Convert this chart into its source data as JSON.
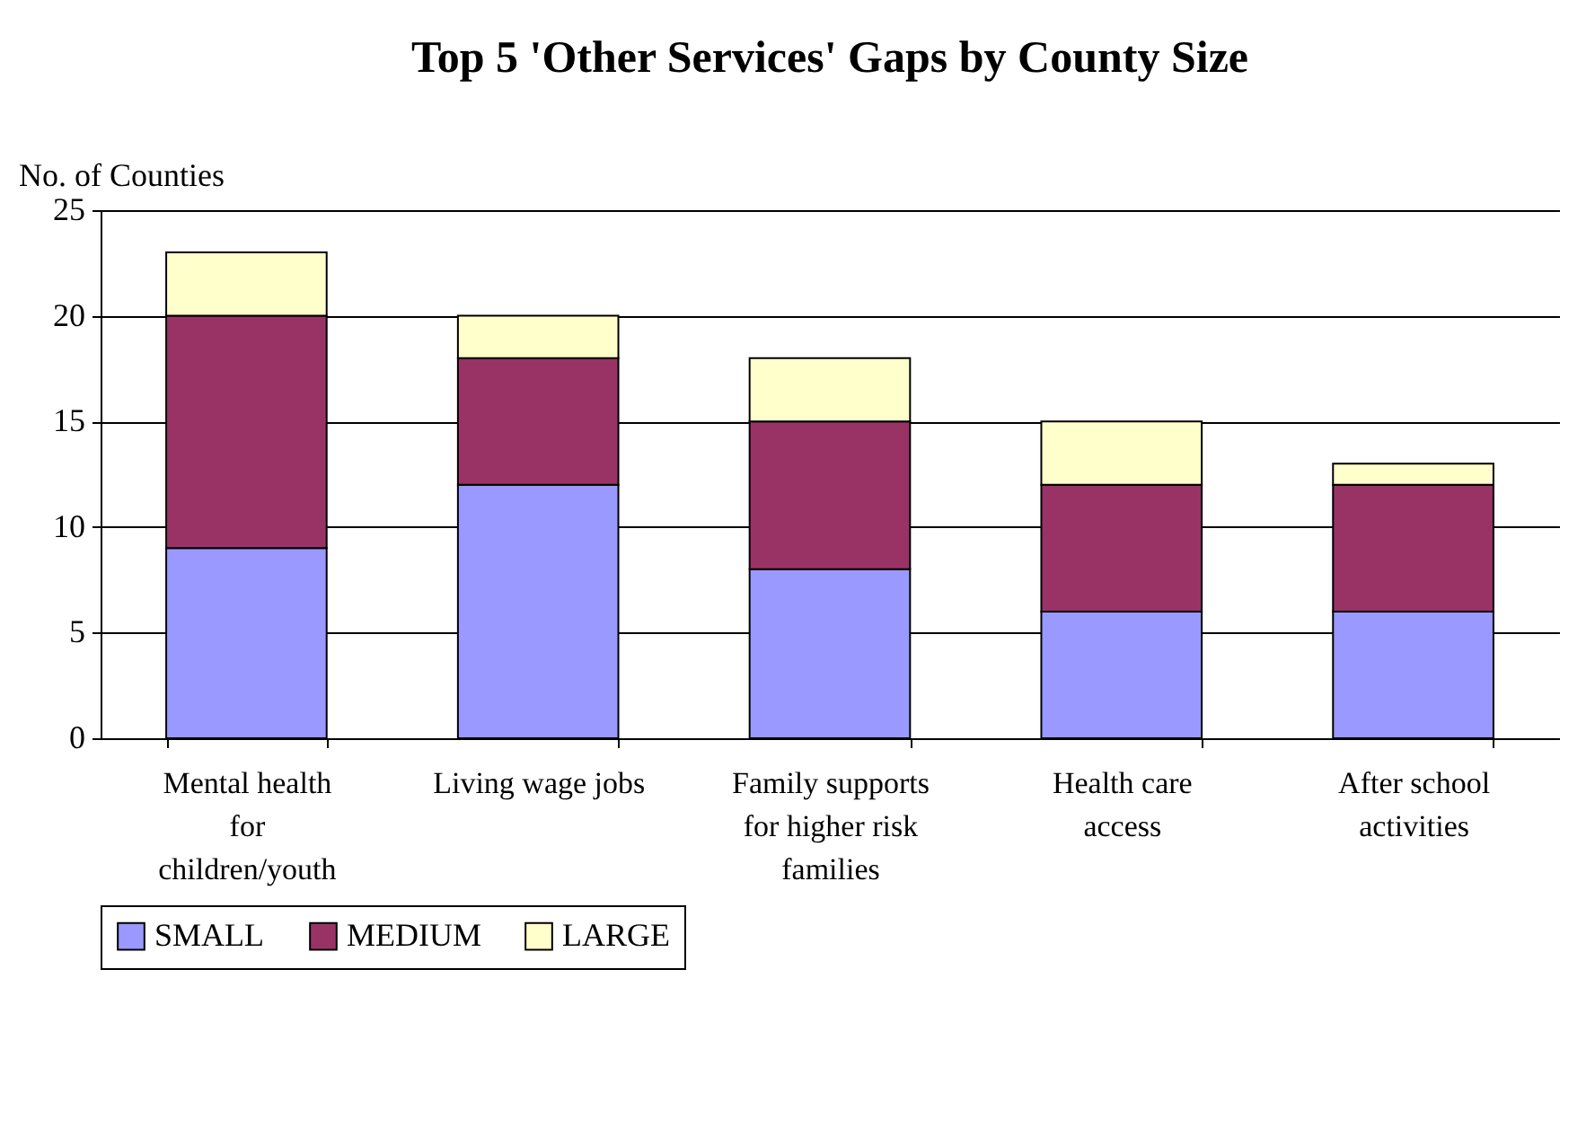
{
  "chart_data": {
    "type": "bar",
    "title": "Top 5 'Other Services' Gaps by County Size",
    "ylabel": "No. of Counties",
    "categories": [
      "Mental health for children/youth",
      "Living wage jobs",
      "Family supports for higher risk families",
      "Health care access",
      "After school activities"
    ],
    "series": [
      {
        "name": "SMALL",
        "color": "#9999ff",
        "values": [
          9,
          12,
          8,
          6,
          6
        ]
      },
      {
        "name": "MEDIUM",
        "color": "#993366",
        "values": [
          11,
          6,
          7,
          6,
          6
        ]
      },
      {
        "name": "LARGE",
        "color": "#ffffcc",
        "values": [
          3,
          2,
          3,
          3,
          1
        ]
      }
    ],
    "stacked": true,
    "ylim": [
      0,
      25
    ],
    "yticks": [
      0,
      5,
      10,
      15,
      20,
      25
    ],
    "grid": "y",
    "legend": "bottom"
  }
}
